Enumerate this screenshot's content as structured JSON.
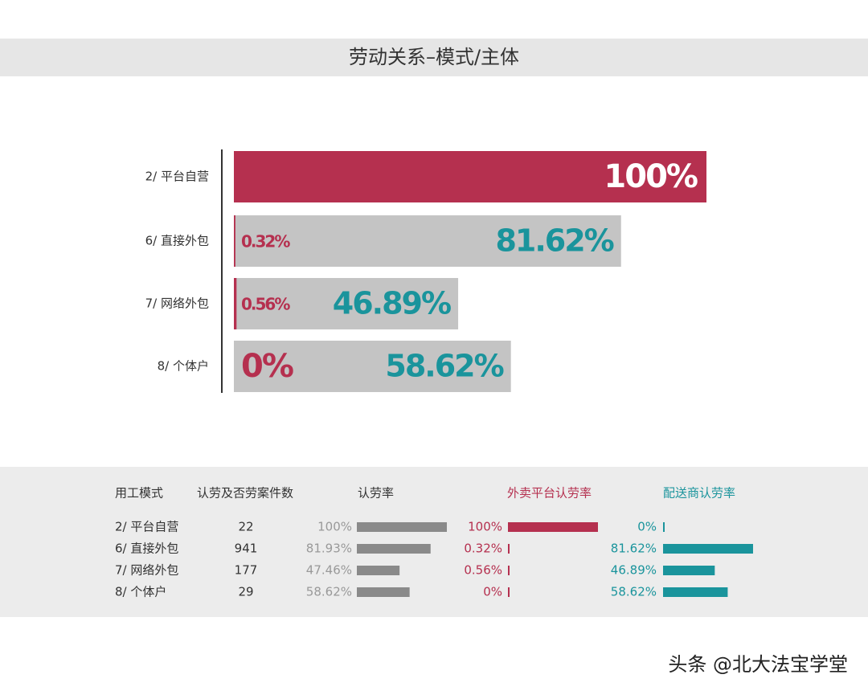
{
  "chart_data": {
    "type": "bar",
    "title": "劳动关系–模式/主体",
    "categories": [
      "2/ 平台自营",
      "6/ 直接外包",
      "7/ 网络外包",
      "8/ 个体户"
    ],
    "xlim": [
      0,
      100
    ],
    "series": [
      {
        "name": "认劳率",
        "color": "#c4c4c4",
        "values": [
          100,
          81.93,
          47.46,
          58.62
        ],
        "value_labels": [
          "100%",
          "81.93%",
          "47.46%",
          "58.62%"
        ]
      },
      {
        "name": "外卖平台认劳率",
        "color": "#b5304f",
        "values": [
          100,
          0.32,
          0.56,
          0
        ],
        "value_labels": [
          "100%",
          "0.32%",
          "0.56%",
          "0%"
        ]
      },
      {
        "name": "配送商认劳率",
        "color": "#1a949c",
        "values": [
          0,
          81.62,
          46.89,
          58.62
        ],
        "value_labels": [
          "0%",
          "81.62%",
          "46.89%",
          "58.62%"
        ]
      }
    ]
  },
  "table": {
    "headers": [
      "用工模式",
      "认劳及否劳案件数"
    ],
    "cases": [
      22,
      941,
      177,
      29
    ]
  },
  "watermark": "头条 @北大法宝学堂"
}
